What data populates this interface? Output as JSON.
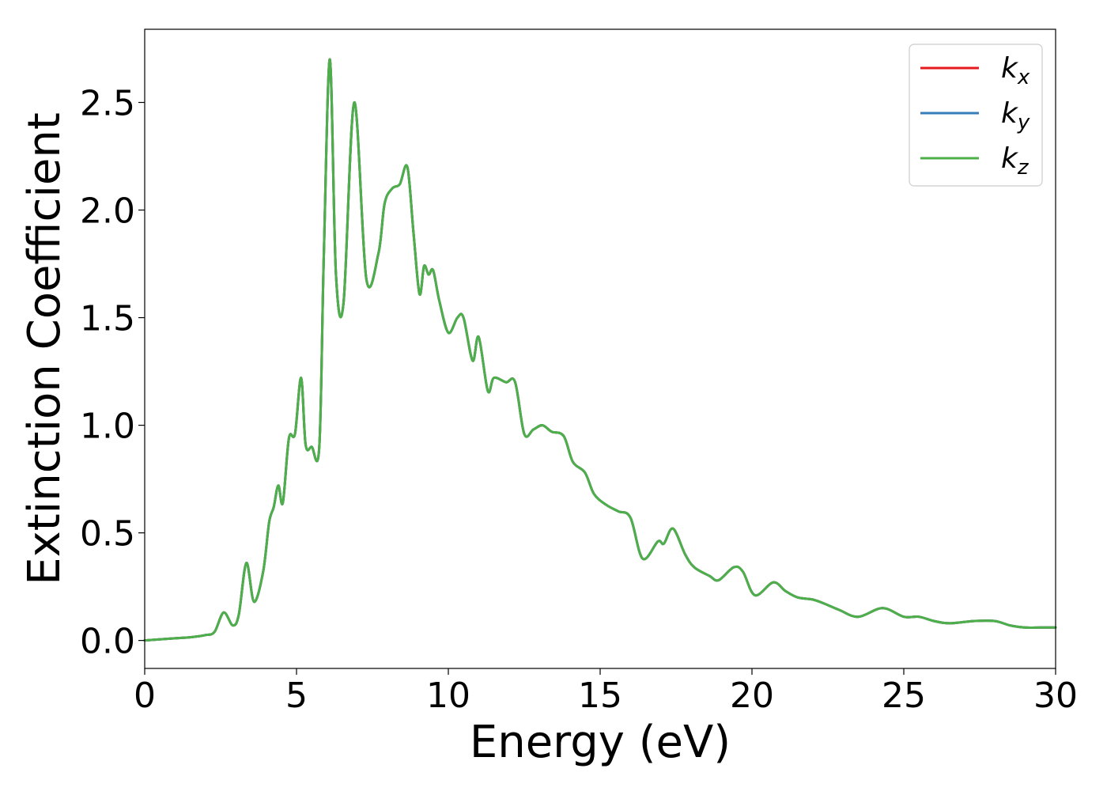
{
  "chart_data": {
    "type": "line",
    "xlabel": "Energy (eV)",
    "ylabel": "Extinction Coefficient",
    "xlim": [
      0,
      30
    ],
    "ylim": [
      -0.13,
      2.84
    ],
    "xticks": [
      0,
      5,
      10,
      15,
      20,
      25,
      30
    ],
    "xtick_labels": [
      "0",
      "5",
      "10",
      "15",
      "20",
      "25",
      "30"
    ],
    "yticks": [
      0.0,
      0.5,
      1.0,
      1.5,
      2.0,
      2.5
    ],
    "ytick_labels": [
      "0.0",
      "0.5",
      "1.0",
      "1.5",
      "2.0",
      "2.5"
    ],
    "grid": false,
    "legend_position": "top-right",
    "x": [
      0,
      1,
      1.5,
      2.0,
      2.3,
      2.6,
      2.9,
      3.1,
      3.35,
      3.6,
      3.9,
      4.1,
      4.25,
      4.4,
      4.55,
      4.75,
      4.95,
      5.15,
      5.3,
      5.5,
      5.75,
      5.9,
      6.1,
      6.3,
      6.55,
      6.9,
      7.3,
      7.7,
      7.9,
      8.15,
      8.4,
      8.65,
      8.85,
      9.05,
      9.2,
      9.35,
      9.5,
      9.7,
      10.0,
      10.3,
      10.5,
      10.8,
      11.0,
      11.3,
      11.5,
      11.9,
      12.2,
      12.5,
      12.8,
      13.1,
      13.4,
      13.8,
      14.1,
      14.5,
      14.8,
      15.2,
      15.6,
      16.0,
      16.4,
      16.9,
      17.1,
      17.4,
      17.8,
      18.1,
      18.6,
      18.9,
      19.4,
      19.7,
      20.1,
      20.7,
      21.1,
      21.5,
      22.0,
      22.4,
      22.9,
      23.5,
      24.3,
      25.0,
      25.5,
      26.0,
      26.5,
      27.3,
      28.0,
      28.5,
      29.0,
      29.5,
      30.0
    ],
    "series": [
      {
        "name": "k",
        "name_sub": "x",
        "color": "#e41a1c",
        "values": [
          0.0,
          0.01,
          0.015,
          0.025,
          0.04,
          0.13,
          0.07,
          0.12,
          0.36,
          0.18,
          0.32,
          0.55,
          0.62,
          0.72,
          0.64,
          0.94,
          0.96,
          1.22,
          0.91,
          0.9,
          0.9,
          1.8,
          2.7,
          1.7,
          1.57,
          2.5,
          1.68,
          1.8,
          2.03,
          2.1,
          2.12,
          2.2,
          1.9,
          1.61,
          1.74,
          1.7,
          1.72,
          1.58,
          1.43,
          1.5,
          1.5,
          1.3,
          1.41,
          1.16,
          1.22,
          1.2,
          1.2,
          0.96,
          0.98,
          1.0,
          0.97,
          0.95,
          0.83,
          0.78,
          0.68,
          0.63,
          0.6,
          0.57,
          0.38,
          0.46,
          0.45,
          0.52,
          0.4,
          0.34,
          0.3,
          0.28,
          0.34,
          0.32,
          0.21,
          0.27,
          0.23,
          0.2,
          0.19,
          0.17,
          0.14,
          0.11,
          0.15,
          0.11,
          0.11,
          0.09,
          0.08,
          0.09,
          0.09,
          0.07,
          0.06,
          0.06,
          0.06
        ]
      },
      {
        "name": "k",
        "name_sub": "y",
        "color": "#377eb8",
        "values": [
          0.0,
          0.01,
          0.015,
          0.025,
          0.04,
          0.13,
          0.07,
          0.12,
          0.36,
          0.18,
          0.32,
          0.55,
          0.62,
          0.72,
          0.64,
          0.94,
          0.96,
          1.22,
          0.91,
          0.9,
          0.9,
          1.8,
          2.7,
          1.7,
          1.57,
          2.5,
          1.68,
          1.8,
          2.03,
          2.1,
          2.12,
          2.2,
          1.9,
          1.61,
          1.74,
          1.7,
          1.72,
          1.58,
          1.43,
          1.5,
          1.5,
          1.3,
          1.41,
          1.16,
          1.22,
          1.2,
          1.2,
          0.96,
          0.98,
          1.0,
          0.97,
          0.95,
          0.83,
          0.78,
          0.68,
          0.63,
          0.6,
          0.57,
          0.38,
          0.46,
          0.45,
          0.52,
          0.4,
          0.34,
          0.3,
          0.28,
          0.34,
          0.32,
          0.21,
          0.27,
          0.23,
          0.2,
          0.19,
          0.17,
          0.14,
          0.11,
          0.15,
          0.11,
          0.11,
          0.09,
          0.08,
          0.09,
          0.09,
          0.07,
          0.06,
          0.06,
          0.06
        ]
      },
      {
        "name": "k",
        "name_sub": "z",
        "color": "#4daf4a",
        "values": [
          0.0,
          0.01,
          0.015,
          0.025,
          0.04,
          0.13,
          0.07,
          0.12,
          0.36,
          0.18,
          0.32,
          0.55,
          0.62,
          0.72,
          0.64,
          0.94,
          0.96,
          1.22,
          0.91,
          0.9,
          0.9,
          1.8,
          2.7,
          1.7,
          1.57,
          2.5,
          1.68,
          1.8,
          2.03,
          2.1,
          2.12,
          2.2,
          1.9,
          1.61,
          1.74,
          1.7,
          1.72,
          1.58,
          1.43,
          1.5,
          1.5,
          1.3,
          1.41,
          1.16,
          1.22,
          1.2,
          1.2,
          0.96,
          0.98,
          1.0,
          0.97,
          0.95,
          0.83,
          0.78,
          0.68,
          0.63,
          0.6,
          0.57,
          0.38,
          0.46,
          0.45,
          0.52,
          0.4,
          0.34,
          0.3,
          0.28,
          0.34,
          0.32,
          0.21,
          0.27,
          0.23,
          0.2,
          0.19,
          0.17,
          0.14,
          0.11,
          0.15,
          0.11,
          0.11,
          0.09,
          0.08,
          0.09,
          0.09,
          0.07,
          0.06,
          0.06,
          0.06
        ]
      }
    ]
  }
}
